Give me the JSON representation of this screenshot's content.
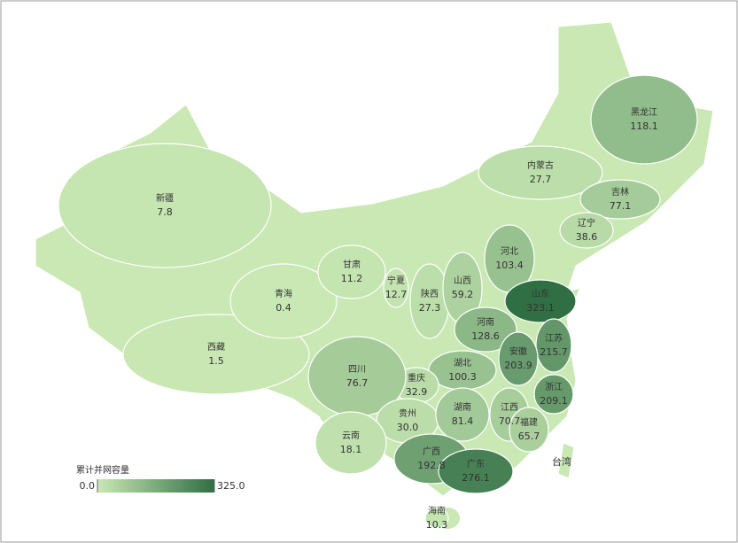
{
  "chart_data": {
    "type": "choropleth",
    "legend_title": "累计并网容量",
    "color_range": [
      "#c9e8b4",
      "#2f6e43"
    ],
    "legend_ticks": [
      {
        "value": 0,
        "label": "0.0"
      },
      {
        "value": 325,
        "label": "325.0"
      }
    ],
    "categories": [
      "新疆",
      "西藏",
      "青海",
      "甘肃",
      "宁夏",
      "陕西",
      "内蒙古",
      "黑龙江",
      "吉林",
      "辽宁",
      "河北",
      "山西",
      "山东",
      "河南",
      "江苏",
      "安徽",
      "湖北",
      "重庆",
      "四川",
      "贵州",
      "云南",
      "湖南",
      "江西",
      "浙江",
      "福建",
      "广西",
      "广东",
      "海南"
    ],
    "values": [
      7.8,
      1.5,
      0.4,
      11.2,
      12.7,
      27.3,
      27.7,
      118.1,
      77.1,
      38.6,
      103.4,
      59.2,
      323.1,
      128.6,
      215.7,
      203.9,
      100.3,
      32.9,
      76.7,
      30.0,
      18.1,
      81.4,
      70.7,
      209.1,
      65.7,
      192.8,
      276.1,
      10.3
    ],
    "value_labels": [
      "7.8",
      "1.5",
      "0.4",
      "11.2",
      "12.7",
      "27.3",
      "27.7",
      "118.1",
      "77.1",
      "38.6",
      "103.4",
      "59.2",
      "323.1",
      "128.6",
      "215.7",
      "203.9",
      "100.3",
      "32.9",
      "76.7",
      "30.0",
      "18.1",
      "81.4",
      "70.7",
      "209.1",
      "65.7",
      "192.8",
      "276.1",
      "10.3"
    ],
    "unvalued_regions": [
      "台湾"
    ]
  }
}
